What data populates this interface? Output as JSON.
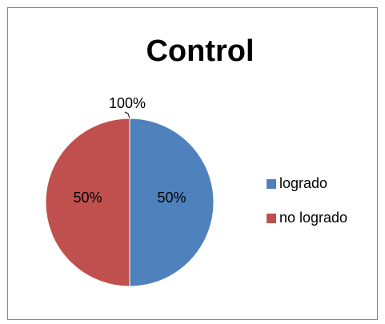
{
  "chart_data": {
    "type": "pie",
    "title": "Control",
    "categories": [
      "logrado",
      "no logrado"
    ],
    "values": [
      50,
      50
    ],
    "value_labels": [
      "50%",
      "50%"
    ],
    "colors": [
      "#4f81bd",
      "#c0504d"
    ],
    "annotation": "100%",
    "legend": "right"
  }
}
